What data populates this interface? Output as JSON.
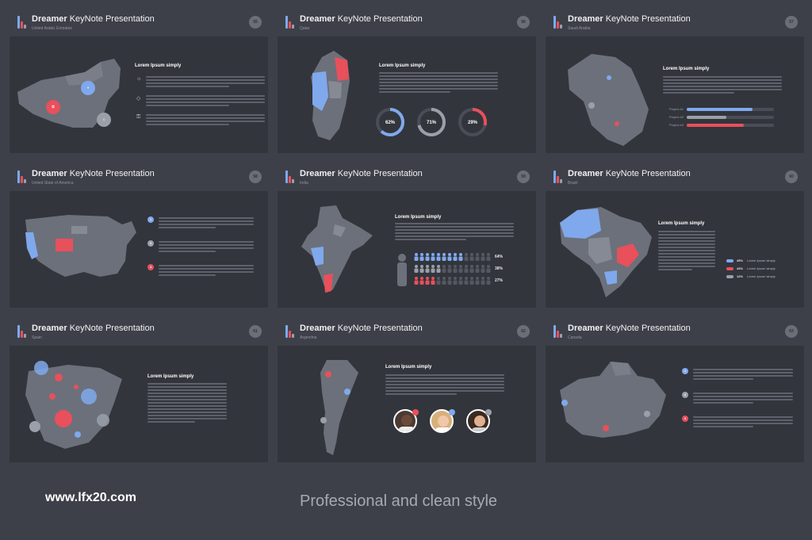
{
  "slide_title": {
    "brand": "Dreamer",
    "rest": " KeyNote Presentation"
  },
  "colors": {
    "blue": "#7fa9ec",
    "red": "#e8505b",
    "gray": "#9aa0aa",
    "slide": "#33353c",
    "background": "#3e4049"
  },
  "content_title": "Lorem Ipsum simply",
  "slides": [
    {
      "subtitle": "United Arabic Emirates",
      "page": "55"
    },
    {
      "subtitle": "Qatar",
      "page": "56"
    },
    {
      "subtitle": "Saudi Arabia",
      "page": "57"
    },
    {
      "subtitle": "United State of America",
      "page": "58"
    },
    {
      "subtitle": "India",
      "page": "59"
    },
    {
      "subtitle": "Brazil",
      "page": "60"
    },
    {
      "subtitle": "Spain",
      "page": "61"
    },
    {
      "subtitle": "Argentina",
      "page": "62"
    },
    {
      "subtitle": "Canada",
      "page": "63"
    }
  ],
  "rings": [
    {
      "label": "62%",
      "value": 62,
      "color": "#7fa9ec"
    },
    {
      "label": "71%",
      "value": 71,
      "color": "#9aa0aa"
    },
    {
      "label": "29%",
      "value": 29,
      "color": "#e8505b"
    }
  ],
  "projects": [
    {
      "label": "Project #1",
      "value": 75,
      "color": "#7fa9ec"
    },
    {
      "label": "Project #2",
      "value": 45,
      "color": "#9aa0aa"
    },
    {
      "label": "Project #3",
      "value": 65,
      "color": "#e8505b"
    }
  ],
  "india_percentages": [
    {
      "label": "64%",
      "value": 64,
      "color": "#7fa9ec"
    },
    {
      "label": "38%",
      "value": 38,
      "color": "#9aa0aa"
    },
    {
      "label": "27%",
      "value": 27,
      "color": "#e8505b"
    }
  ],
  "brazil_legend": [
    {
      "pct": "45%",
      "text": "Lorem Ipsum simply",
      "color": "#7fa9ec"
    },
    {
      "pct": "43%",
      "text": "Lorem Ipsum simply",
      "color": "#e8505b"
    },
    {
      "pct": "12%",
      "text": "Lorem Ipsum simply",
      "color": "#9aa0aa"
    }
  ],
  "usa_bullets": [
    "1",
    "2",
    "3"
  ],
  "canada_bullets": [
    "1",
    "2",
    "3"
  ],
  "uae_icons": [
    "bulb-icon",
    "diamond-icon",
    "lock-icon"
  ],
  "footer": {
    "url": "www.lfx20.com",
    "tagline": "Professional and clean style"
  }
}
